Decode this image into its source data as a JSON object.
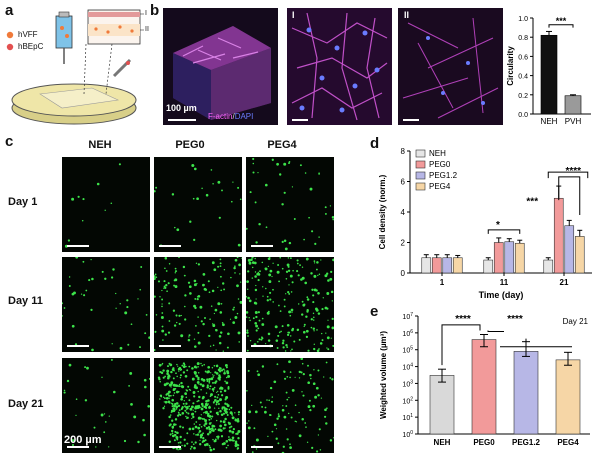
{
  "panels": {
    "a": "a",
    "b": "b",
    "c": "c",
    "d": "d",
    "e": "e"
  },
  "panel_a": {
    "legend": [
      "hVFF",
      "hBEpC"
    ],
    "roman": [
      "I",
      "II"
    ],
    "colors": {
      "hVFF": "#f07a3a",
      "hBEpC": "#e35050",
      "dish": "#efe6a8"
    }
  },
  "panel_b": {
    "scale_label": "100 µm",
    "stain_factin": "F-actin",
    "stain_sep": "/",
    "stain_dapi": "DAPI",
    "roman": [
      "I",
      "II"
    ],
    "colors": {
      "factin": "#ff66ff",
      "dapi": "#6a7cff"
    }
  },
  "panel_c": {
    "columns": [
      "NEH",
      "PEG0",
      "PEG4"
    ],
    "rows": [
      "Day 1",
      "Day 11",
      "Day 21"
    ],
    "scale_label": "200 µm",
    "cell_color": "#3ce34a"
  },
  "chart_data": [
    {
      "id": "b-circularity",
      "type": "bar",
      "categories": [
        "NEH",
        "PVH"
      ],
      "values": [
        0.82,
        0.19
      ],
      "errors": [
        0.04,
        0.01
      ],
      "ylabel": "Circularity",
      "ylim": [
        0,
        1.0
      ],
      "yticks": [
        "0.0",
        "0.2",
        "0.4",
        "0.6",
        "0.8",
        "1.0"
      ],
      "significance": [
        {
          "pair": [
            0,
            1
          ],
          "label": "***"
        }
      ],
      "colors": [
        "#111111",
        "#9a9a9a"
      ]
    },
    {
      "id": "d-cell-density",
      "type": "bar",
      "categories": [
        "1",
        "11",
        "21"
      ],
      "xlabel": "Time (day)",
      "ylabel": "Cell density (norm.)",
      "ylim": [
        0,
        8
      ],
      "yticks": [
        "0",
        "2",
        "4",
        "6",
        "8"
      ],
      "legend_position": "top-left",
      "series": [
        {
          "name": "NEH",
          "values": [
            1.0,
            0.85,
            0.85
          ],
          "errors": [
            0.2,
            0.15,
            0.15
          ],
          "color": "#e6e6e6"
        },
        {
          "name": "PEG0",
          "values": [
            1.0,
            2.0,
            4.9
          ],
          "errors": [
            0.2,
            0.3,
            0.8
          ],
          "color": "#f29a9a"
        },
        {
          "name": "PEG1.2",
          "values": [
            1.0,
            2.05,
            3.1
          ],
          "errors": [
            0.2,
            0.2,
            0.35
          ],
          "color": "#b7b7e6"
        },
        {
          "name": "PEG4",
          "values": [
            1.0,
            1.95,
            2.4
          ],
          "errors": [
            0.15,
            0.2,
            0.4
          ],
          "color": "#f6d6a6"
        }
      ],
      "significance": [
        {
          "label": "*",
          "group": "11"
        },
        {
          "label": "***",
          "group": "21"
        },
        {
          "label": "****",
          "group": "21"
        }
      ]
    },
    {
      "id": "e-weighted-volume",
      "type": "bar",
      "categories": [
        "NEH",
        "PEG0",
        "PEG1.2",
        "PEG4"
      ],
      "values": [
        3000,
        400000,
        80000,
        25000
      ],
      "err_low": [
        1200,
        150000,
        40000,
        12000
      ],
      "err_high": [
        7000,
        800000,
        300000,
        70000
      ],
      "ylabel": "Weighted volume (µm³)",
      "yscale": "log",
      "ylim": [
        1,
        10000000
      ],
      "ytick_base": "10",
      "ytick_exps": [
        "0",
        "1",
        "2",
        "3",
        "4",
        "5",
        "6",
        "7"
      ],
      "annotation": "Day 21",
      "significance": [
        {
          "label": "****",
          "pair": [
            "NEH",
            "PEG0"
          ]
        },
        {
          "label": "****",
          "pair": [
            "PEG0",
            "PEG1.2/PEG4"
          ]
        }
      ],
      "colors": [
        "#d9d9d9",
        "#f29a9a",
        "#b7b7e6",
        "#f6d6a6"
      ]
    }
  ]
}
